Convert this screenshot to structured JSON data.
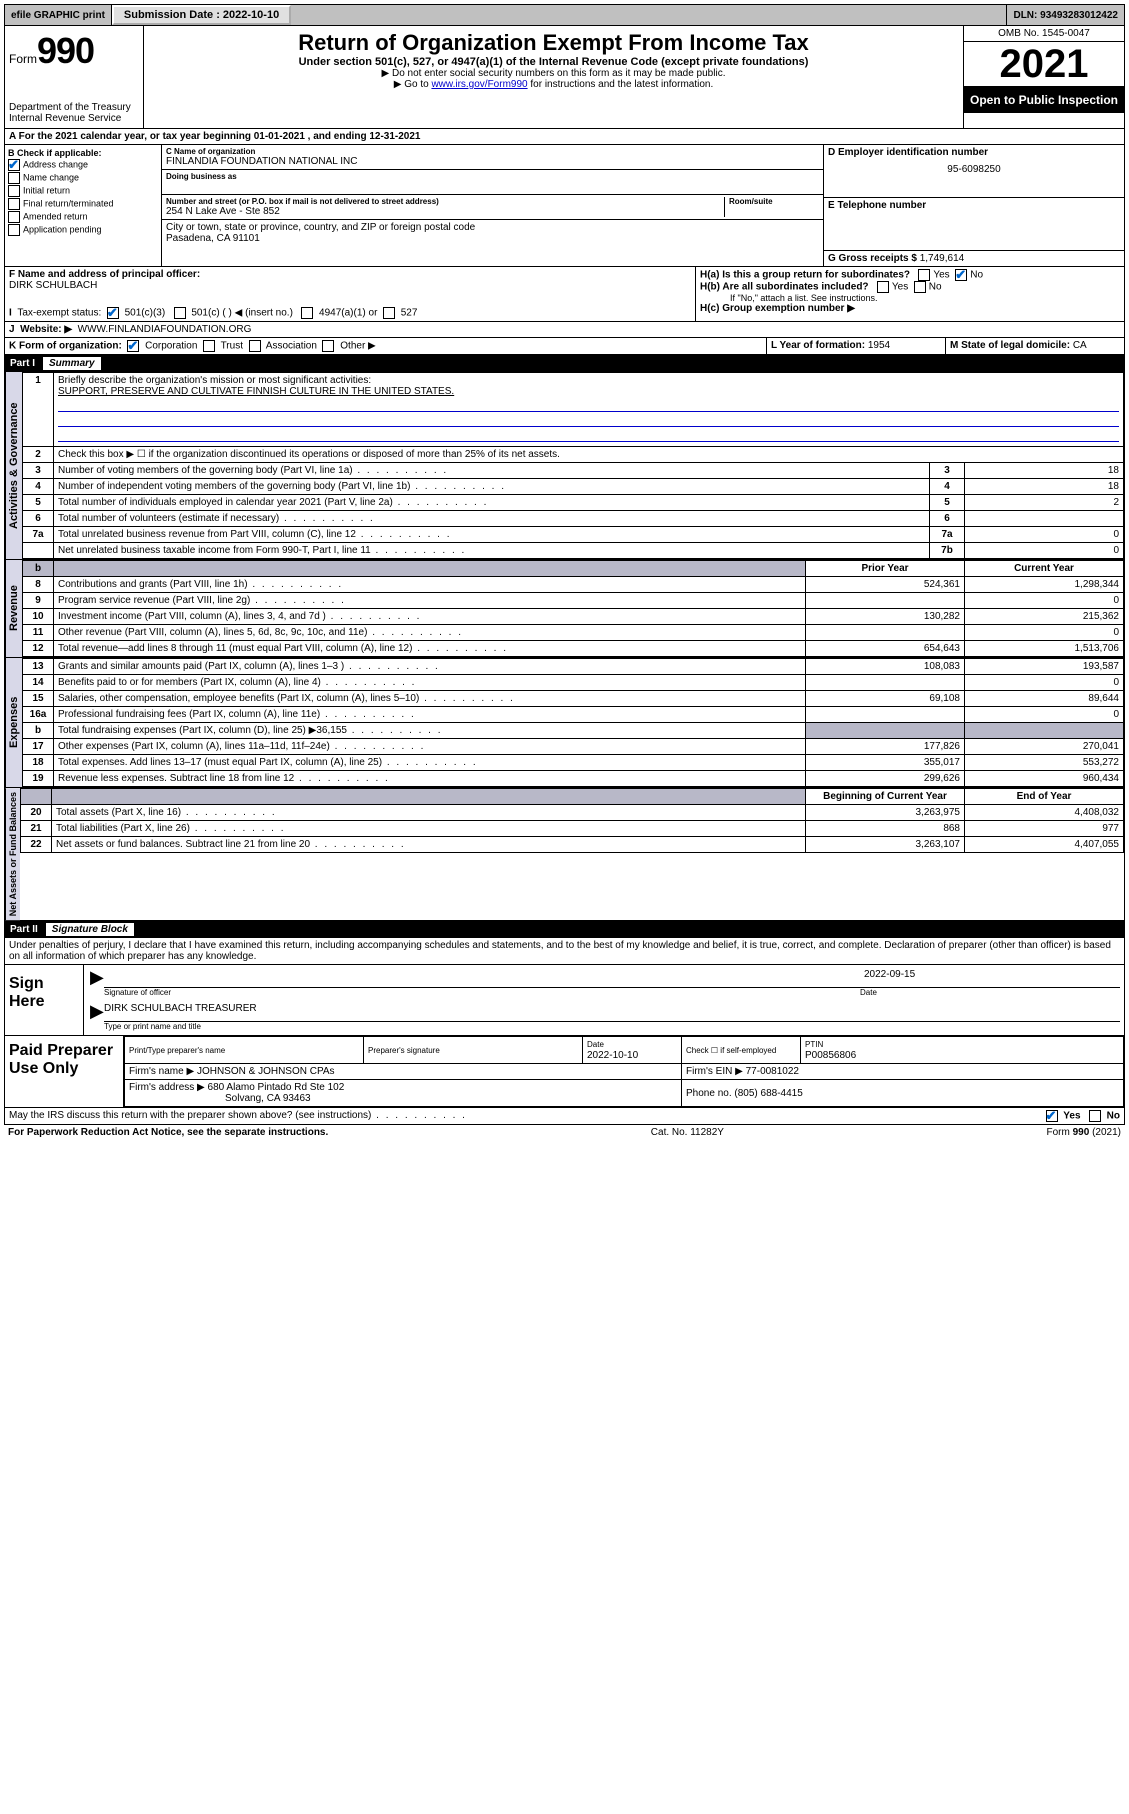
{
  "topbar": {
    "efile_label": "efile GRAPHIC print",
    "submission_label": "Submission Date : 2022-10-10",
    "dln_label": "DLN: 93493283012422"
  },
  "header": {
    "form_prefix": "Form",
    "form_number": "990",
    "dept": "Department of the Treasury",
    "irs": "Internal Revenue Service",
    "title": "Return of Organization Exempt From Income Tax",
    "sub1": "Under section 501(c), 527, or 4947(a)(1) of the Internal Revenue Code (except private foundations)",
    "sub2": "▶ Do not enter social security numbers on this form as it may be made public.",
    "sub3_pre": "▶ Go to ",
    "sub3_link": "www.irs.gov/Form990",
    "sub3_post": " for instructions and the latest information.",
    "omb": "OMB No. 1545-0047",
    "taxyear": "2021",
    "open_inspection": "Open to Public Inspection"
  },
  "lineA": "For the 2021 calendar year, or tax year beginning 01-01-2021   , and ending 12-31-2021",
  "boxB": {
    "label": "B Check if applicable:",
    "addr_change": "Address change",
    "name_change": "Name change",
    "initial": "Initial return",
    "final": "Final return/terminated",
    "amended": "Amended return",
    "app_pending": "Application pending"
  },
  "boxC": {
    "name_lbl": "C Name of organization",
    "name": "FINLANDIA FOUNDATION NATIONAL INC",
    "dba_lbl": "Doing business as",
    "street_lbl": "Number and street (or P.O. box if mail is not delivered to street address)",
    "room_lbl": "Room/suite",
    "street": "254 N Lake Ave - Ste 852",
    "city_lbl": "City or town, state or province, country, and ZIP or foreign postal code",
    "city": "Pasadena, CA  91101"
  },
  "boxD": {
    "lbl": "D Employer identification number",
    "val": "95-6098250"
  },
  "boxE": {
    "lbl": "E Telephone number",
    "val": ""
  },
  "boxG": {
    "lbl": "G Gross receipts $",
    "val": "1,749,614"
  },
  "boxF": {
    "lbl": "F Name and address of principal officer:",
    "val": "DIRK SCHULBACH"
  },
  "boxH": {
    "ha": "H(a)  Is this a group return for subordinates?",
    "hb": "H(b)  Are all subordinates included?",
    "hb_note": "If \"No,\" attach a list. See instructions.",
    "hc": "H(c)  Group exemption number ▶",
    "yes": "Yes",
    "no": "No"
  },
  "boxI": {
    "lbl": "Tax-exempt status:",
    "c3": "501(c)(3)",
    "cblank": "501(c) (  ) ◀ (insert no.)",
    "a1": "4947(a)(1) or",
    "s527": "527"
  },
  "boxJ": {
    "lbl": "Website: ▶",
    "val": "WWW.FINLANDIAFOUNDATION.ORG"
  },
  "boxK": {
    "lbl": "K Form of organization:",
    "corp": "Corporation",
    "trust": "Trust",
    "assoc": "Association",
    "other": "Other ▶"
  },
  "boxL": {
    "lbl": "L Year of formation:",
    "val": "1954"
  },
  "boxM": {
    "lbl": "M State of legal domicile:",
    "val": "CA"
  },
  "part1": {
    "hdr_num": "Part I",
    "hdr_title": "Summary",
    "governance_label": "Activities & Governance",
    "revenue_label": "Revenue",
    "expenses_label": "Expenses",
    "netassets_label": "Net Assets or Fund Balances",
    "line1_lbl": "Briefly describe the organization's mission or most significant activities:",
    "line1_val": "SUPPORT, PRESERVE AND CULTIVATE FINNISH CULTURE IN THE UNITED STATES.",
    "line2": "Check this box ▶ ☐  if the organization discontinued its operations or disposed of more than 25% of its net assets.",
    "rows_gov": [
      {
        "n": "3",
        "txt": "Number of voting members of the governing body (Part VI, line 1a)",
        "box": "3",
        "val": "18"
      },
      {
        "n": "4",
        "txt": "Number of independent voting members of the governing body (Part VI, line 1b)",
        "box": "4",
        "val": "18"
      },
      {
        "n": "5",
        "txt": "Total number of individuals employed in calendar year 2021 (Part V, line 2a)",
        "box": "5",
        "val": "2"
      },
      {
        "n": "6",
        "txt": "Total number of volunteers (estimate if necessary)",
        "box": "6",
        "val": ""
      },
      {
        "n": "7a",
        "txt": "Total unrelated business revenue from Part VIII, column (C), line 12",
        "box": "7a",
        "val": "0"
      },
      {
        "n": "",
        "txt": "Net unrelated business taxable income from Form 990-T, Part I, line 11",
        "box": "7b",
        "val": "0"
      }
    ],
    "col_prior": "Prior Year",
    "col_current": "Current Year",
    "rows_rev": [
      {
        "n": "8",
        "txt": "Contributions and grants (Part VIII, line 1h)",
        "p": "524,361",
        "c": "1,298,344"
      },
      {
        "n": "9",
        "txt": "Program service revenue (Part VIII, line 2g)",
        "p": "",
        "c": "0"
      },
      {
        "n": "10",
        "txt": "Investment income (Part VIII, column (A), lines 3, 4, and 7d )",
        "p": "130,282",
        "c": "215,362"
      },
      {
        "n": "11",
        "txt": "Other revenue (Part VIII, column (A), lines 5, 6d, 8c, 9c, 10c, and 11e)",
        "p": "",
        "c": "0"
      },
      {
        "n": "12",
        "txt": "Total revenue—add lines 8 through 11 (must equal Part VIII, column (A), line 12)",
        "p": "654,643",
        "c": "1,513,706"
      }
    ],
    "rows_exp": [
      {
        "n": "13",
        "txt": "Grants and similar amounts paid (Part IX, column (A), lines 1–3 )",
        "p": "108,083",
        "c": "193,587"
      },
      {
        "n": "14",
        "txt": "Benefits paid to or for members (Part IX, column (A), line 4)",
        "p": "",
        "c": "0"
      },
      {
        "n": "15",
        "txt": "Salaries, other compensation, employee benefits (Part IX, column (A), lines 5–10)",
        "p": "69,108",
        "c": "89,644"
      },
      {
        "n": "16a",
        "txt": "Professional fundraising fees (Part IX, column (A), line 11e)",
        "p": "",
        "c": "0"
      },
      {
        "n": "b",
        "txt": "Total fundraising expenses (Part IX, column (D), line 25) ▶36,155",
        "p": "SHADE",
        "c": "SHADE"
      },
      {
        "n": "17",
        "txt": "Other expenses (Part IX, column (A), lines 11a–11d, 11f–24e)",
        "p": "177,826",
        "c": "270,041"
      },
      {
        "n": "18",
        "txt": "Total expenses. Add lines 13–17 (must equal Part IX, column (A), line 25)",
        "p": "355,017",
        "c": "553,272"
      },
      {
        "n": "19",
        "txt": "Revenue less expenses. Subtract line 18 from line 12",
        "p": "299,626",
        "c": "960,434"
      }
    ],
    "col_begin": "Beginning of Current Year",
    "col_end": "End of Year",
    "rows_net": [
      {
        "n": "20",
        "txt": "Total assets (Part X, line 16)",
        "p": "3,263,975",
        "c": "4,408,032"
      },
      {
        "n": "21",
        "txt": "Total liabilities (Part X, line 26)",
        "p": "868",
        "c": "977"
      },
      {
        "n": "22",
        "txt": "Net assets or fund balances. Subtract line 21 from line 20",
        "p": "3,263,107",
        "c": "4,407,055"
      }
    ]
  },
  "part2": {
    "hdr_num": "Part II",
    "hdr_title": "Signature Block",
    "perjury": "Under penalties of perjury, I declare that I have examined this return, including accompanying schedules and statements, and to the best of my knowledge and belief, it is true, correct, and complete. Declaration of preparer (other than officer) is based on all information of which preparer has any knowledge.",
    "sign_here": "Sign Here",
    "sig_officer_lbl": "Signature of officer",
    "sig_date": "2022-09-15",
    "date_lbl": "Date",
    "officer_name": "DIRK SCHULBACH  TREASURER",
    "name_title_lbl": "Type or print name and title",
    "paid_prep": "Paid Preparer Use Only",
    "prep_name_lbl": "Print/Type preparer's name",
    "prep_sig_lbl": "Preparer's signature",
    "prep_date_lbl": "Date",
    "prep_date": "2022-10-10",
    "self_emp": "Check ☐ if self-employed",
    "ptin_lbl": "PTIN",
    "ptin": "P00856806",
    "firm_name_lbl": "Firm's name    ▶",
    "firm_name": "JOHNSON & JOHNSON CPAs",
    "firm_ein_lbl": "Firm's EIN ▶",
    "firm_ein": "77-0081022",
    "firm_addr_lbl": "Firm's address ▶",
    "firm_addr1": "680 Alamo Pintado Rd Ste 102",
    "firm_addr2": "Solvang, CA  93463",
    "phone_lbl": "Phone no.",
    "phone": "(805) 688-4415",
    "discuss": "May the IRS discuss this return with the preparer shown above? (see instructions)",
    "yes": "Yes",
    "no": "No"
  },
  "footer": {
    "pra": "For Paperwork Reduction Act Notice, see the separate instructions.",
    "cat": "Cat. No. 11282Y",
    "form": "Form 990 (2021)"
  }
}
